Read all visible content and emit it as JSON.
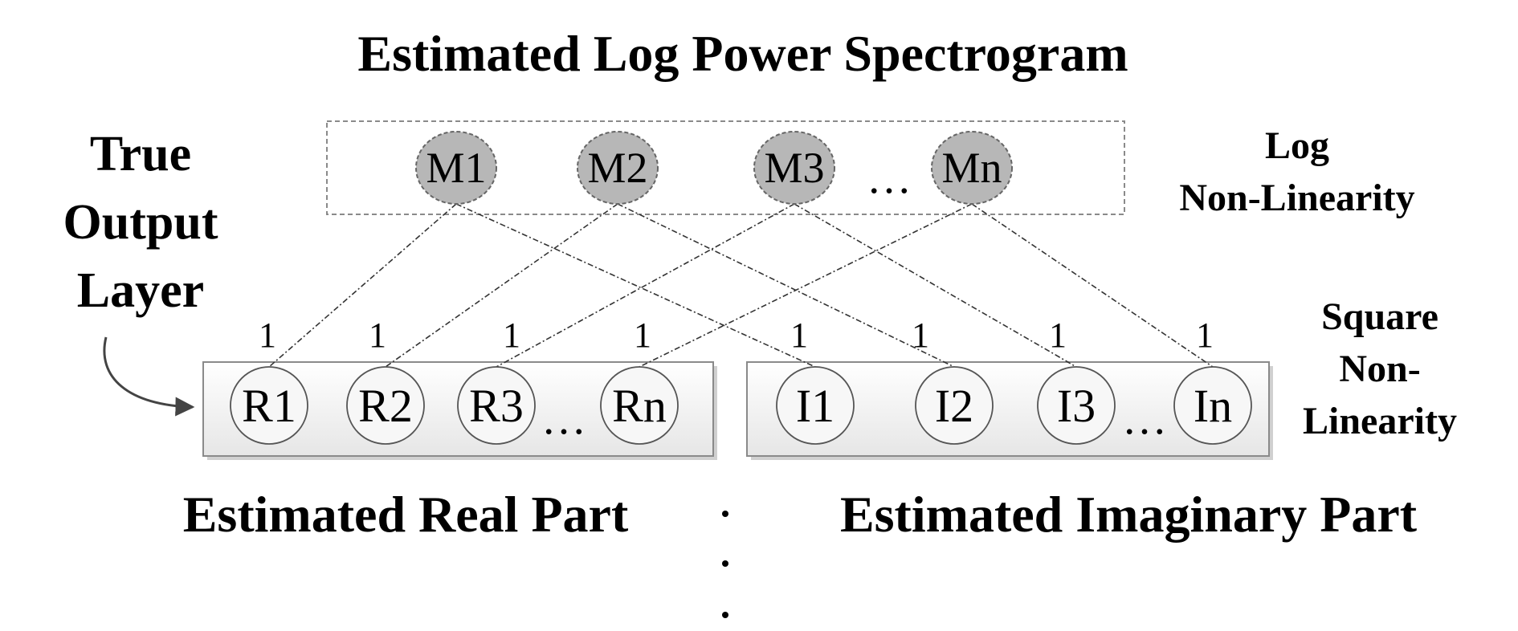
{
  "title": "Estimated Log Power Spectrogram",
  "left_label": [
    "True",
    "Output",
    "Layer"
  ],
  "log_label": [
    "Log",
    "Non-Linearity"
  ],
  "square_label": [
    "Square",
    "Non-",
    "Linearity"
  ],
  "top_nodes": [
    "M1",
    "M2",
    "M3",
    "Mn"
  ],
  "real_nodes": [
    "R1",
    "R2",
    "R3",
    "Rn"
  ],
  "imag_nodes": [
    "I1",
    "I2",
    "I3",
    "In"
  ],
  "ellipsis": "…",
  "weight": "1",
  "real_caption": "Estimated Real Part",
  "imag_caption": "Estimated Imaginary Part",
  "colors": {
    "top_node_fill": "#b7b7b7",
    "box_fill": "#f2f2f2",
    "line": "#333333"
  }
}
